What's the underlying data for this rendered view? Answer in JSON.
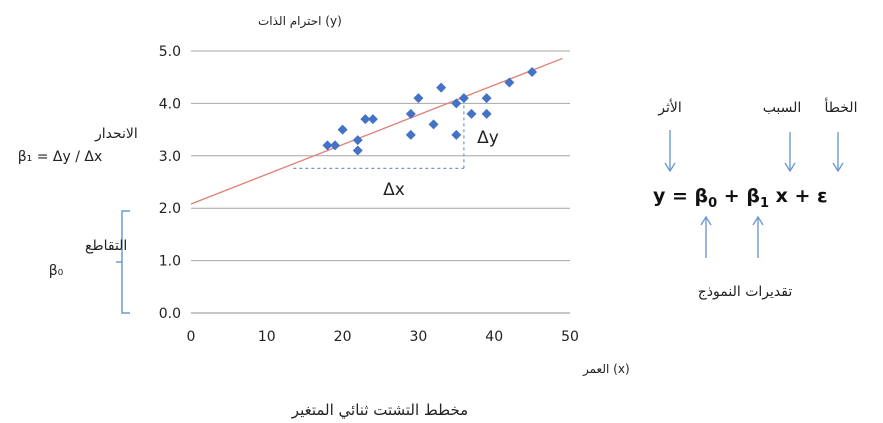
{
  "chart_data": {
    "type": "scatter",
    "title": "",
    "caption": "مخطط التشتت ثنائي المتغير",
    "xlabel": "(x) العمر",
    "ylabel": "(y) احترام الذات",
    "xlim": [
      0,
      50
    ],
    "ylim": [
      0,
      5
    ],
    "xticks": [
      "0",
      "10",
      "20",
      "30",
      "40",
      "50"
    ],
    "yticks": [
      "0.0",
      "1.0",
      "2.0",
      "3.0",
      "4.0",
      "5.0"
    ],
    "grid": "horizontal",
    "points": [
      {
        "x": 18,
        "y": 3.2
      },
      {
        "x": 19,
        "y": 3.2
      },
      {
        "x": 20,
        "y": 3.5
      },
      {
        "x": 22,
        "y": 3.1
      },
      {
        "x": 22,
        "y": 3.3
      },
      {
        "x": 23,
        "y": 3.7
      },
      {
        "x": 24,
        "y": 3.7
      },
      {
        "x": 29,
        "y": 3.4
      },
      {
        "x": 29,
        "y": 3.8
      },
      {
        "x": 30,
        "y": 4.1
      },
      {
        "x": 32,
        "y": 3.6
      },
      {
        "x": 33,
        "y": 4.3
      },
      {
        "x": 35,
        "y": 3.4
      },
      {
        "x": 35,
        "y": 4.0
      },
      {
        "x": 36,
        "y": 4.1
      },
      {
        "x": 37,
        "y": 3.8
      },
      {
        "x": 39,
        "y": 4.1
      },
      {
        "x": 39,
        "y": 3.8
      },
      {
        "x": 42,
        "y": 4.4
      },
      {
        "x": 45,
        "y": 4.6
      }
    ],
    "regression_line": {
      "intercept": 2.08,
      "slope": 0.0567,
      "x_range": [
        0,
        49
      ]
    },
    "slope_triangle": {
      "x0": 13.5,
      "x1": 36,
      "y0": 2.76,
      "dx_label": "Δx",
      "dy_label": "Δy"
    },
    "point_color": "#4472c4",
    "line_color": "#e07e72",
    "annotation_color": "#6f9bd1"
  },
  "annotations": {
    "slope_label": "الانحدار",
    "slope_formula": "β₁ = Δy / Δx",
    "intercept_label": "التقاطع",
    "intercept_symbol": "β₀",
    "effect_label": "الأثر",
    "cause_label": "السبب",
    "error_label": "الخطأ",
    "estimates_label": "تقديرات النموذج"
  },
  "equation": {
    "y": "y = β",
    "sub0": "0",
    "plus1": " + β",
    "sub1": "1",
    "rest": " x + ε"
  }
}
